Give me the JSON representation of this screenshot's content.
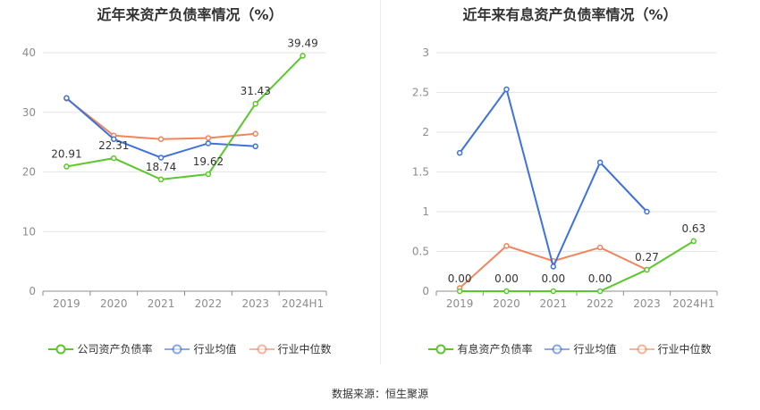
{
  "colors": {
    "green": "#5ac72b",
    "blue": "#3d71db",
    "orange": "#f2845c",
    "grid": "#e6e6e6",
    "axis": "#8c8c8c",
    "text": "#8c8c8c"
  },
  "source_text": "数据来源：恒生聚源",
  "chart_data": [
    {
      "type": "line",
      "title": "近年来资产负债率情况（%）",
      "categories": [
        "2019",
        "2020",
        "2021",
        "2022",
        "2023",
        "2024H1"
      ],
      "ylim": [
        0,
        40
      ],
      "yticks": [
        "0",
        "10",
        "20",
        "30",
        "40"
      ],
      "ytick_values": [
        0,
        10,
        20,
        30,
        40
      ],
      "legend_position": "bottom",
      "series": [
        {
          "name": "公司资产负债率",
          "color": "#5ac72b",
          "values": [
            20.91,
            22.31,
            18.74,
            19.62,
            31.43,
            39.49
          ],
          "labels": [
            "20.91",
            "22.31",
            "18.74",
            "19.62",
            "31.43",
            "39.49"
          ]
        },
        {
          "name": "行业均值",
          "color": "#3d71db",
          "values": [
            32.4,
            25.5,
            22.4,
            24.8,
            24.3,
            null
          ]
        },
        {
          "name": "行业中位数",
          "color": "#f2845c",
          "values": [
            32.3,
            26.1,
            25.5,
            25.7,
            26.4,
            null
          ]
        }
      ]
    },
    {
      "type": "line",
      "title": "近年来有息资产负债率情况（%）",
      "categories": [
        "2019",
        "2020",
        "2021",
        "2022",
        "2023",
        "2024H1"
      ],
      "ylim": [
        0,
        3
      ],
      "yticks": [
        "0",
        "0.5",
        "1",
        "1.5",
        "2",
        "2.5",
        "3"
      ],
      "ytick_values": [
        0,
        0.5,
        1,
        1.5,
        2,
        2.5,
        3
      ],
      "legend_position": "bottom",
      "series": [
        {
          "name": "有息资产负债率",
          "color": "#5ac72b",
          "values": [
            0.0,
            0.0,
            0.0,
            0.0,
            0.27,
            0.63
          ],
          "labels": [
            "0.00",
            "0.00",
            "0.00",
            "0.00",
            "0.27",
            "0.63"
          ]
        },
        {
          "name": "行业均值",
          "color": "#3d71db",
          "values": [
            1.74,
            2.54,
            0.31,
            1.62,
            1.0,
            null
          ]
        },
        {
          "name": "行业中位数",
          "color": "#f2845c",
          "values": [
            0.04,
            0.57,
            0.38,
            0.55,
            0.27,
            null
          ]
        }
      ]
    }
  ]
}
